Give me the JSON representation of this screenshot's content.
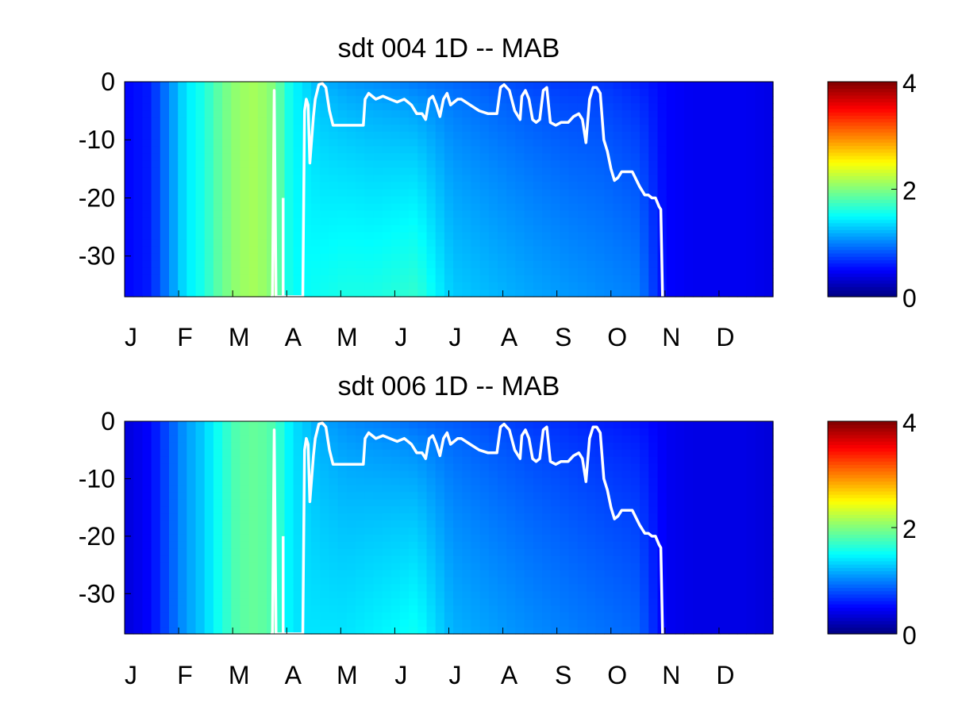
{
  "chart_data": [
    {
      "type": "heatmap",
      "title": "sdt  004 1D   -- MAB",
      "xlabel": "",
      "ylabel": "",
      "x_ticks": [
        "J",
        "F",
        "M",
        "A",
        "M",
        "J",
        "J",
        "A",
        "S",
        "O",
        "N",
        "D"
      ],
      "y_ticks": [
        "0",
        "-10",
        "-20",
        "-30"
      ],
      "x_range_days": [
        1,
        365
      ],
      "y_range": [
        -37,
        0
      ],
      "colorbar": {
        "range": [
          0,
          4
        ],
        "ticks": [
          "0",
          "2",
          "4"
        ],
        "colormap": "jet"
      },
      "heat_days": [
        1,
        15,
        25,
        35,
        45,
        55,
        65,
        75,
        85,
        95,
        110,
        125,
        140,
        155,
        165,
        185,
        200,
        215,
        230,
        250,
        270,
        290,
        305,
        320,
        335,
        350,
        365
      ],
      "heat_surface": [
        0.5,
        0.6,
        1.0,
        1.4,
        1.6,
        1.9,
        2.1,
        2.15,
        2.0,
        1.5,
        1.2,
        1.1,
        1.05,
        1.0,
        0.95,
        0.9,
        0.85,
        0.8,
        0.75,
        0.7,
        0.7,
        0.6,
        0.5,
        0.45,
        0.45,
        0.45,
        0.4
      ],
      "heat_bottom": [
        0.5,
        0.6,
        1.0,
        1.4,
        1.6,
        1.9,
        2.1,
        2.15,
        2.0,
        1.5,
        1.55,
        1.6,
        1.6,
        1.65,
        1.7,
        1.3,
        1.25,
        1.2,
        1.15,
        1.1,
        1.05,
        1.0,
        0.5,
        0.45,
        0.45,
        0.45,
        0.4
      ],
      "mld_line": {
        "color": "#ffffff",
        "days": [
          83,
          84,
          85,
          86,
          86,
          99,
          101,
          102,
          103,
          104,
          105,
          107,
          108,
          110,
          112,
          114,
          116,
          118,
          120,
          123,
          127,
          135,
          136,
          138,
          142,
          146,
          150,
          154,
          158,
          162,
          165,
          168,
          170,
          172,
          174,
          176,
          178,
          180,
          182,
          184,
          186,
          188,
          190,
          195,
          200,
          205,
          210,
          212,
          214,
          217,
          220,
          223,
          224,
          226,
          228,
          230,
          232,
          234,
          236,
          238,
          240,
          243,
          246,
          250,
          253,
          256,
          258,
          260,
          262,
          264,
          266,
          268,
          270,
          272,
          274,
          276,
          278,
          280,
          283,
          286,
          290,
          293,
          295,
          297,
          299,
          301,
          302,
          303
        ],
        "depths": [
          -37,
          -37,
          -1.5,
          -37,
          -37,
          -37,
          -37,
          -5,
          -3,
          -4,
          -14,
          -6,
          -3,
          -0.5,
          -0.3,
          -1,
          -5,
          -7.5,
          -7.5,
          -7.5,
          -7.5,
          -7.5,
          -3,
          -2,
          -3,
          -2.5,
          -3,
          -3.5,
          -3,
          -4,
          -5.5,
          -5.5,
          -6.5,
          -3,
          -2.5,
          -4,
          -6,
          -3,
          -2,
          -4,
          -3.5,
          -3,
          -3,
          -4,
          -5,
          -5.5,
          -5.5,
          -1,
          -0.5,
          -1.5,
          -5,
          -6.5,
          -2.5,
          -1.5,
          -3,
          -6.5,
          -7,
          -6.5,
          -1.5,
          -1,
          -7,
          -7.5,
          -7,
          -7,
          -6,
          -5.5,
          -6.5,
          -10.5,
          -3,
          -1,
          -1,
          -2,
          -10,
          -12,
          -15,
          -17,
          -16.5,
          -15.5,
          -15.5,
          -15.5,
          -18,
          -19.5,
          -19.5,
          -20,
          -20,
          -21.5,
          -22,
          -37
        ]
      },
      "mld_spikes": [
        {
          "day": 90,
          "top": -20,
          "bottom": -37
        }
      ]
    },
    {
      "type": "heatmap",
      "title": "sdt  006 1D   -- MAB",
      "xlabel": "",
      "ylabel": "",
      "x_ticks": [
        "J",
        "F",
        "M",
        "A",
        "M",
        "J",
        "J",
        "A",
        "S",
        "O",
        "N",
        "D"
      ],
      "y_ticks": [
        "0",
        "-10",
        "-20",
        "-30"
      ],
      "x_range_days": [
        1,
        365
      ],
      "y_range": [
        -37,
        0
      ],
      "colorbar": {
        "range": [
          0,
          4
        ],
        "ticks": [
          "0",
          "2",
          "4"
        ],
        "colormap": "jet"
      },
      "heat_days": [
        1,
        15,
        25,
        35,
        45,
        55,
        65,
        75,
        85,
        95,
        110,
        125,
        140,
        155,
        165,
        185,
        200,
        215,
        230,
        250,
        270,
        290,
        305,
        320,
        335,
        350,
        365
      ],
      "heat_surface": [
        0.35,
        0.5,
        0.8,
        1.1,
        1.3,
        1.6,
        1.85,
        1.9,
        1.8,
        1.4,
        1.15,
        1.05,
        1.0,
        0.95,
        0.9,
        0.85,
        0.8,
        0.75,
        0.7,
        0.65,
        0.6,
        0.55,
        0.45,
        0.4,
        0.4,
        0.4,
        0.35
      ],
      "heat_bottom": [
        0.35,
        0.5,
        0.8,
        1.1,
        1.3,
        1.6,
        1.85,
        1.9,
        1.8,
        1.4,
        1.4,
        1.4,
        1.45,
        1.5,
        1.55,
        1.2,
        1.15,
        1.1,
        1.05,
        1.0,
        0.95,
        0.9,
        0.45,
        0.4,
        0.4,
        0.4,
        0.35
      ],
      "mld_line": {
        "color": "#ffffff",
        "days": [
          83,
          84,
          85,
          86,
          86,
          99,
          101,
          102,
          103,
          104,
          105,
          107,
          108,
          110,
          112,
          114,
          116,
          118,
          120,
          123,
          127,
          135,
          136,
          138,
          142,
          146,
          150,
          154,
          158,
          162,
          165,
          168,
          170,
          172,
          174,
          176,
          178,
          180,
          182,
          184,
          186,
          188,
          190,
          195,
          200,
          205,
          210,
          212,
          214,
          217,
          220,
          223,
          224,
          226,
          228,
          230,
          232,
          234,
          236,
          238,
          240,
          243,
          246,
          250,
          253,
          256,
          258,
          260,
          262,
          264,
          266,
          268,
          270,
          272,
          274,
          276,
          278,
          280,
          283,
          286,
          290,
          293,
          295,
          297,
          299,
          301,
          302,
          303
        ],
        "depths": [
          -37,
          -37,
          -1.5,
          -37,
          -37,
          -37,
          -37,
          -5,
          -3,
          -4,
          -14,
          -6,
          -3,
          -0.5,
          -0.3,
          -1,
          -5,
          -7.5,
          -7.5,
          -7.5,
          -7.5,
          -7.5,
          -3,
          -2,
          -3,
          -2.5,
          -3,
          -3.5,
          -3,
          -4,
          -5.5,
          -5.5,
          -6.5,
          -3,
          -2.5,
          -4,
          -6,
          -3,
          -2,
          -4,
          -3.5,
          -3,
          -3,
          -4,
          -5,
          -5.5,
          -5.5,
          -1,
          -0.5,
          -1.5,
          -5,
          -6.5,
          -2.5,
          -1.5,
          -3,
          -6.5,
          -7,
          -6.5,
          -1.5,
          -1,
          -7,
          -7.5,
          -7,
          -7,
          -6,
          -5.5,
          -6.5,
          -10.5,
          -3,
          -1,
          -1,
          -2,
          -10,
          -12,
          -15,
          -17,
          -16.5,
          -15.5,
          -15.5,
          -15.5,
          -18,
          -19.5,
          -19.5,
          -20,
          -20,
          -21.5,
          -22,
          -37
        ]
      },
      "mld_spikes": [
        {
          "day": 90,
          "top": -20,
          "bottom": -37
        }
      ]
    }
  ]
}
